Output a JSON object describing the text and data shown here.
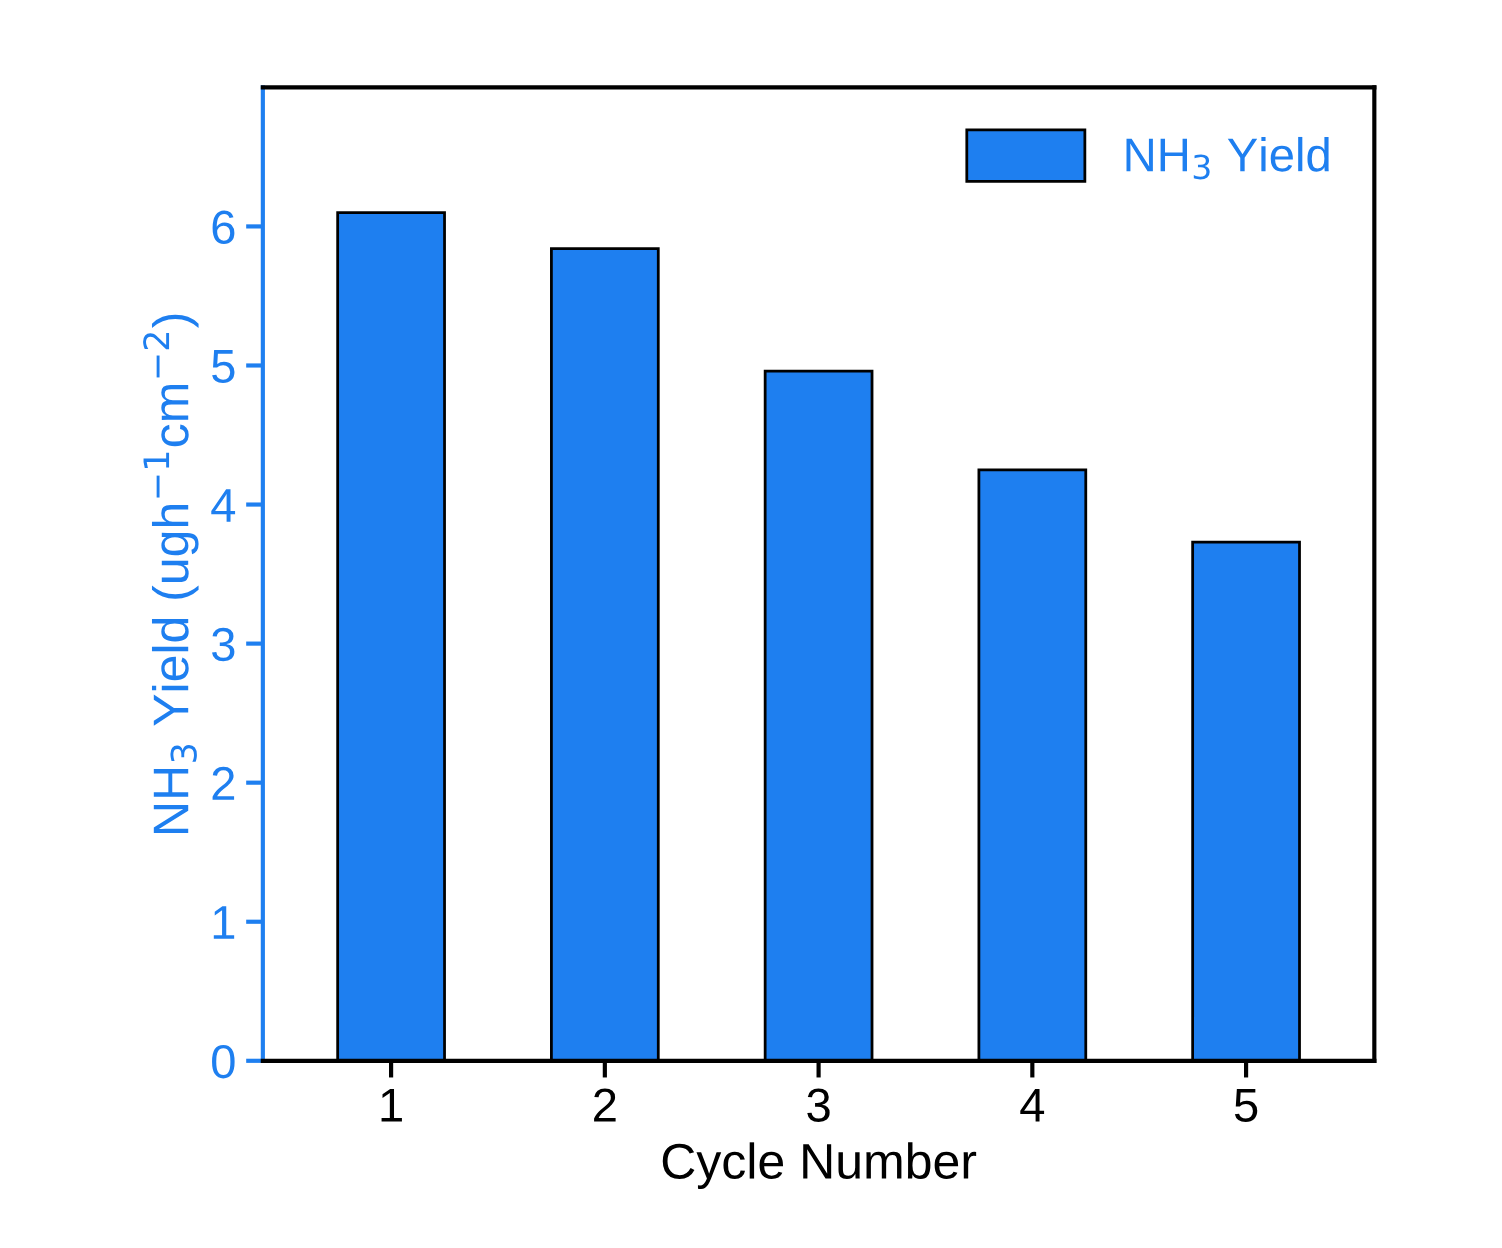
{
  "chart_data": {
    "type": "bar",
    "xlabel": "Cycle Number",
    "ylabel": "NH$_{3}$ Yield (ugh$^{−1}$cm$^{−2}$)",
    "categories": [
      "1",
      "2",
      "3",
      "4",
      "5"
    ],
    "series": [
      {
        "name": "NH$_{3}$ Yield",
        "color": "#1e7ff0",
        "values": [
          6.1,
          5.84,
          4.96,
          4.25,
          3.73
        ]
      }
    ],
    "ylim": [
      0,
      7
    ],
    "yticks": [
      0,
      1,
      2,
      3,
      4,
      5,
      6
    ],
    "grid": false,
    "legend": "top right"
  }
}
